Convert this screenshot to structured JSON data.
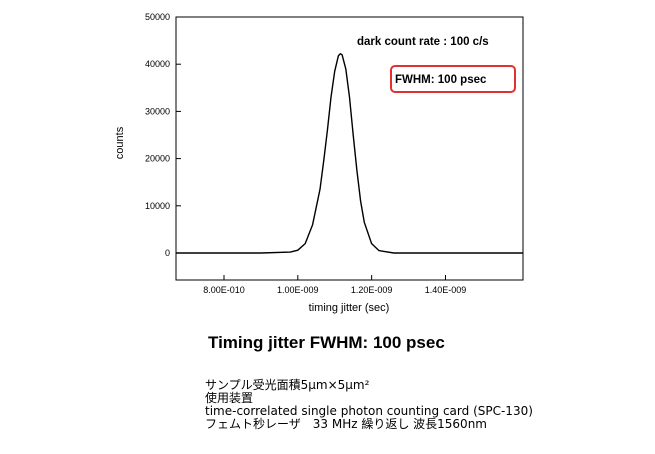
{
  "chart_data": {
    "type": "line",
    "xlabel": "timing jitter (sec)",
    "ylabel": "counts",
    "xlim": [
      6.7e-10,
      1.61e-09
    ],
    "ylim": [
      0,
      50000
    ],
    "x_tick_labels": [
      "8.00E-010",
      "1.00E-009",
      "1.20E-009",
      "1.40E-009"
    ],
    "x_ticks": [
      8e-10,
      1e-09,
      1.2e-09,
      1.4e-09
    ],
    "y_ticks": [
      0,
      10000,
      20000,
      30000,
      40000,
      50000
    ],
    "y_tick_labels": [
      "0",
      "10000",
      "20000",
      "30000",
      "40000",
      "50000"
    ],
    "grid": false,
    "series": [
      {
        "x": [
          6.7e-10,
          9e-10,
          9.8e-10,
          1e-09,
          1.02e-09,
          1.04e-09,
          1.06e-09,
          1.07e-09,
          1.08e-09,
          1.09e-09,
          1.1e-09,
          1.11e-09,
          1.115e-09,
          1.12e-09,
          1.13e-09,
          1.14e-09,
          1.15e-09,
          1.16e-09,
          1.17e-09,
          1.18e-09,
          1.2e-09,
          1.22e-09,
          1.26e-09,
          1.61e-09
        ],
        "values": [
          0,
          0,
          200,
          600,
          2000,
          6000,
          13500,
          19500,
          26000,
          33000,
          38500,
          41800,
          42200,
          42000,
          39000,
          33000,
          25000,
          17500,
          11000,
          6500,
          2000,
          500,
          0,
          0
        ]
      }
    ],
    "annotations": [
      "dark count rate : 100 c/s",
      "FWHM: 100 psec"
    ],
    "annotation_box_color": "#e03030"
  },
  "caption": {
    "title": "Timing jitter FWHM: 100 psec",
    "lines": [
      "サンプル受光面積5μm×5μm²",
      "使用装置",
      "time-correlated single photon counting card (SPC-130)",
      "フェムト秒レーザ　33 MHz 繰り返し 波長1560nm"
    ]
  }
}
